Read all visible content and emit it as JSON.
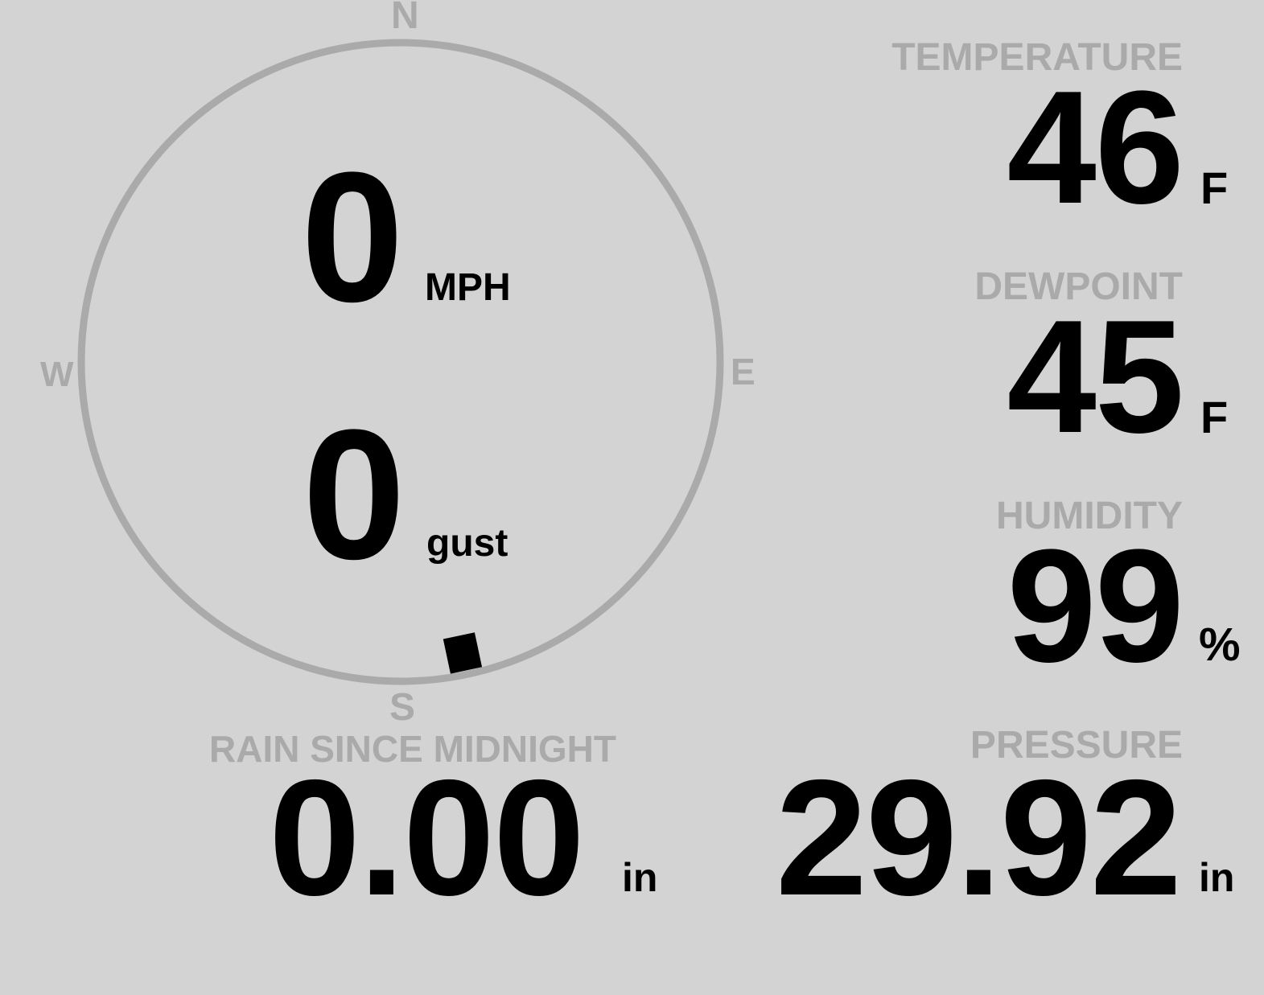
{
  "colors": {
    "background": "#d3d3d3",
    "label": "#aaaaaa",
    "value": "#000000",
    "compass_ring": "#aaaaaa",
    "direction_marker": "#000000"
  },
  "wind": {
    "compass": {
      "n": "N",
      "e": "E",
      "s": "S",
      "w": "W"
    },
    "direction_degrees": 168,
    "speed": "0",
    "speed_unit": "MPH",
    "gust": "0",
    "gust_unit": "gust"
  },
  "temperature": {
    "label": "TEMPERATURE",
    "value": "46",
    "unit": "F"
  },
  "dewpoint": {
    "label": "DEWPOINT",
    "value": "45",
    "unit": "F"
  },
  "humidity": {
    "label": "HUMIDITY",
    "value": "99",
    "unit": "%"
  },
  "rain": {
    "label": "RAIN SINCE MIDNIGHT",
    "value": "0.00",
    "unit": "in"
  },
  "pressure": {
    "label": "PRESSURE",
    "value": "29.92",
    "unit": "in"
  }
}
